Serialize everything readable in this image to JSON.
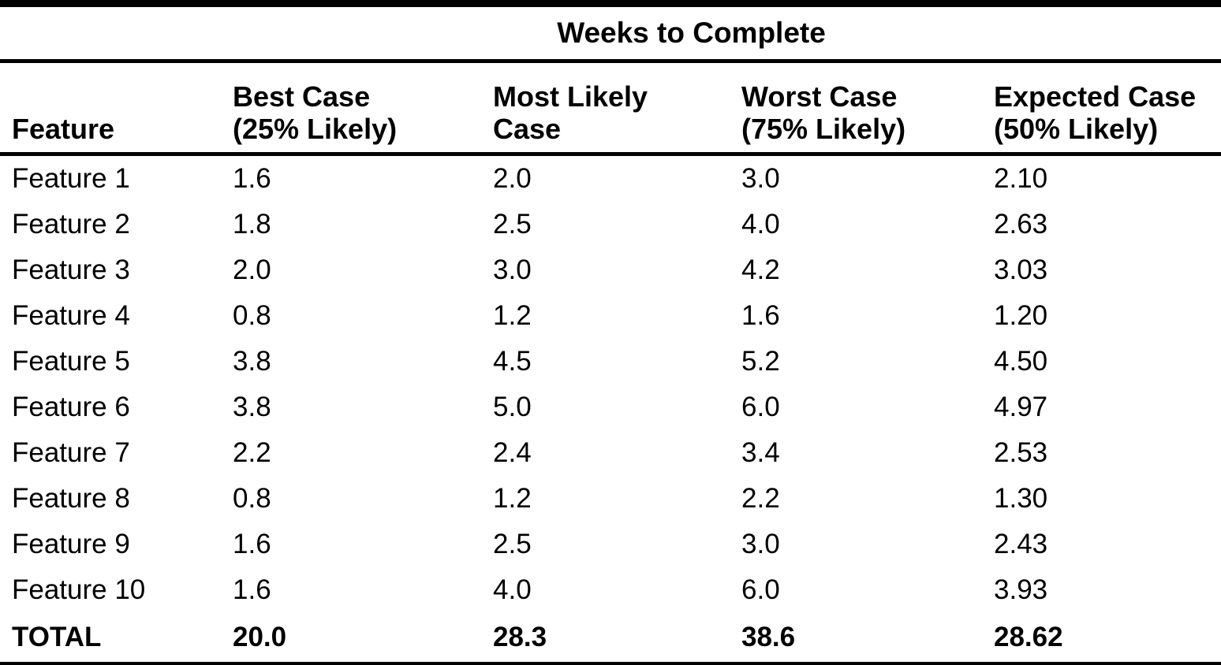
{
  "table": {
    "title": "Weeks to Complete",
    "columns": [
      {
        "lines": [
          "Feature"
        ]
      },
      {
        "lines": [
          "Best Case",
          "(25% Likely)"
        ]
      },
      {
        "lines": [
          "Most Likely",
          "Case"
        ]
      },
      {
        "lines": [
          "Worst Case",
          "(75% Likely)"
        ]
      },
      {
        "lines": [
          "Expected Case",
          "(50% Likely)"
        ]
      }
    ],
    "rows": [
      {
        "feature": "Feature 1",
        "best_case": "1.6",
        "most_likely": "2.0",
        "worst_case": "3.0",
        "expected_case": "2.10"
      },
      {
        "feature": "Feature 2",
        "best_case": "1.8",
        "most_likely": "2.5",
        "worst_case": "4.0",
        "expected_case": "2.63"
      },
      {
        "feature": "Feature 3",
        "best_case": "2.0",
        "most_likely": "3.0",
        "worst_case": "4.2",
        "expected_case": "3.03"
      },
      {
        "feature": "Feature 4",
        "best_case": "0.8",
        "most_likely": "1.2",
        "worst_case": "1.6",
        "expected_case": "1.20"
      },
      {
        "feature": "Feature 5",
        "best_case": "3.8",
        "most_likely": "4.5",
        "worst_case": "5.2",
        "expected_case": "4.50"
      },
      {
        "feature": "Feature 6",
        "best_case": "3.8",
        "most_likely": "5.0",
        "worst_case": "6.0",
        "expected_case": "4.97"
      },
      {
        "feature": "Feature 7",
        "best_case": "2.2",
        "most_likely": "2.4",
        "worst_case": "3.4",
        "expected_case": "2.53"
      },
      {
        "feature": "Feature 8",
        "best_case": "0.8",
        "most_likely": "1.2",
        "worst_case": "2.2",
        "expected_case": "1.30"
      },
      {
        "feature": "Feature 9",
        "best_case": "1.6",
        "most_likely": "2.5",
        "worst_case": "3.0",
        "expected_case": "2.43"
      },
      {
        "feature": "Feature 10",
        "best_case": "1.6",
        "most_likely": "4.0",
        "worst_case": "6.0",
        "expected_case": "3.93"
      }
    ],
    "total": {
      "feature": "TOTAL",
      "best_case": "20.0",
      "most_likely": "28.3",
      "worst_case": "38.6",
      "expected_case": "28.62"
    }
  },
  "colors": {
    "text": "#000000",
    "background": "#ffffff",
    "rule": "#000000"
  }
}
